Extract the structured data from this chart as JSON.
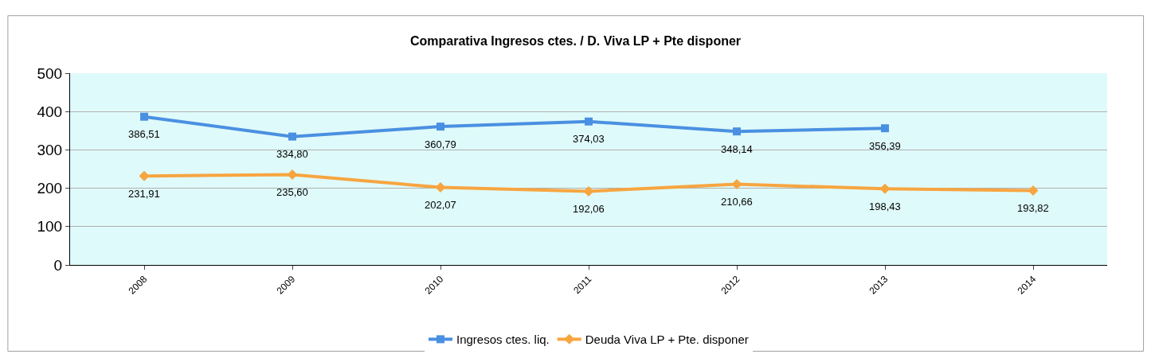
{
  "chart_data": {
    "type": "line",
    "title": "Comparativa Ingresos ctes. / D. Viva LP + Pte disponer",
    "categories": [
      "2008",
      "2009",
      "2010",
      "2011",
      "2012",
      "2013",
      "2014"
    ],
    "series": [
      {
        "name": "Ingresos ctes. liq.",
        "color": "#4a90e2",
        "marker": "square",
        "values": [
          386.51,
          334.8,
          360.79,
          374.03,
          348.14,
          356.39,
          null
        ],
        "value_labels": [
          "386,51",
          "334,80",
          "360,79",
          "374,03",
          "348,14",
          "356,39",
          null
        ]
      },
      {
        "name": "Deuda Viva LP + Pte. disponer",
        "color": "#f7a540",
        "marker": "diamond",
        "values": [
          231.91,
          235.6,
          202.07,
          192.06,
          210.66,
          198.43,
          193.82
        ],
        "value_labels": [
          "231,91",
          "235,60",
          "202,07",
          "192,06",
          "210,66",
          "198,43",
          "193,82"
        ]
      }
    ],
    "ylim": [
      0,
      500
    ],
    "yticks": [
      0,
      100,
      200,
      300,
      400,
      500
    ],
    "grid": "y",
    "legend": "bottom"
  }
}
